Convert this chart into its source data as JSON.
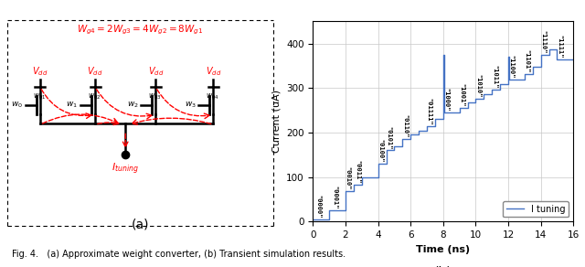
{
  "step_data": [
    [
      0.0,
      1.0,
      5
    ],
    [
      1.0,
      2.0,
      25
    ],
    [
      2.0,
      2.5,
      68
    ],
    [
      2.5,
      3.0,
      82
    ],
    [
      3.0,
      4.0,
      100
    ],
    [
      4.0,
      4.5,
      130
    ],
    [
      4.5,
      5.0,
      160
    ],
    [
      5.0,
      5.5,
      170
    ],
    [
      5.5,
      6.0,
      185
    ],
    [
      6.0,
      6.5,
      195
    ],
    [
      6.5,
      7.0,
      205
    ],
    [
      7.0,
      7.5,
      215
    ],
    [
      7.5,
      8.0,
      230
    ],
    [
      8.0,
      8.05,
      375
    ],
    [
      8.05,
      9.0,
      245
    ],
    [
      9.0,
      9.5,
      255
    ],
    [
      9.5,
      10.0,
      268
    ],
    [
      10.0,
      10.5,
      277
    ],
    [
      10.5,
      11.0,
      287
    ],
    [
      11.0,
      11.5,
      297
    ],
    [
      11.5,
      12.0,
      308
    ],
    [
      12.0,
      12.05,
      370
    ],
    [
      12.05,
      13.0,
      320
    ],
    [
      13.0,
      13.5,
      332
    ],
    [
      13.5,
      14.0,
      348
    ],
    [
      14.0,
      14.5,
      375
    ],
    [
      14.5,
      15.0,
      388
    ],
    [
      15.0,
      16.0,
      365
    ]
  ],
  "labels_info": [
    [
      0.3,
      5,
      "\"0000\""
    ],
    [
      1.3,
      25,
      "\"0001\""
    ],
    [
      2.1,
      68,
      "\"0010\""
    ],
    [
      2.7,
      82,
      "\"0011\""
    ],
    [
      4.1,
      130,
      "\"0100\""
    ],
    [
      4.6,
      160,
      "\"0101\""
    ],
    [
      5.6,
      185,
      "\"0110\""
    ],
    [
      7.1,
      215,
      "\"01111\""
    ],
    [
      8.15,
      245,
      "\"1000\""
    ],
    [
      9.1,
      255,
      "\"1001\""
    ],
    [
      10.1,
      277,
      "\"1010\""
    ],
    [
      11.1,
      297,
      "\"1011\""
    ],
    [
      12.15,
      320,
      "\"1100\""
    ],
    [
      13.1,
      332,
      "\"1101\""
    ],
    [
      14.1,
      375,
      "\"1110\""
    ],
    [
      15.1,
      365,
      "\"1111\""
    ]
  ],
  "xlabel": "Time (ns)",
  "ylabel": "Current (uA)",
  "xlim": [
    0,
    16
  ],
  "ylim": [
    0,
    450
  ],
  "yticks": [
    0,
    100,
    200,
    300,
    400
  ],
  "xticks": [
    0,
    2,
    4,
    6,
    8,
    10,
    12,
    14,
    16
  ],
  "line_color": "#4472C4",
  "legend_label": "I tuning",
  "caption": "Fig. 4.   (a) Approximate weight converter, (b) Transient simulation results."
}
